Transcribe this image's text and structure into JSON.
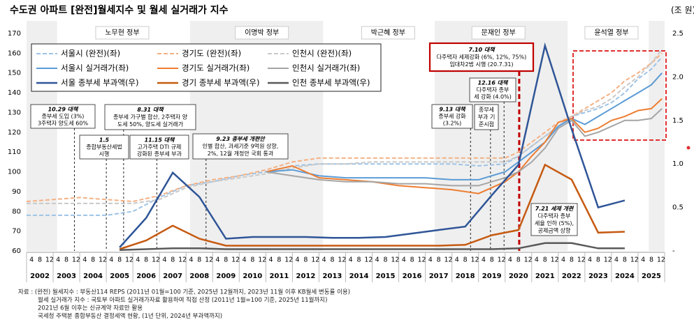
{
  "chart_data": {
    "type": "line",
    "title": "수도권 아파트 [완전]월세지수 및 월세 실거래가 지수",
    "y2_unit": "(조 원)",
    "ylim": [
      60,
      170
    ],
    "yticks": [
      60,
      70,
      80,
      90,
      100,
      110,
      120,
      130,
      140,
      150,
      160,
      170
    ],
    "y2lim": [
      0,
      2.5
    ],
    "y2ticks": [
      {
        "value": 0,
        "label": "-"
      },
      0.5,
      {
        "value": 1,
        "label": "1.0"
      },
      1.5,
      {
        "value": 2,
        "label": "2.0"
      },
      2.5
    ],
    "xlim": [
      2002,
      2026
    ],
    "years": [
      "2002",
      "2003",
      "2004",
      "2005",
      "2006",
      "2007",
      "2008",
      "2009",
      "2010",
      "2011",
      "2012",
      "2013",
      "2014",
      "2015",
      "2016",
      "2017",
      "2018",
      "2019",
      "2020",
      "2021",
      "2022",
      "2023",
      "2024",
      "2025"
    ],
    "month_ticks": [
      "4",
      "8",
      "12"
    ],
    "presidents": [
      "노무현 정부",
      "이명박 정부",
      "박근혜 정부",
      "문재인 정부",
      "윤석열 정부"
    ],
    "x": [
      2002,
      2003,
      2004,
      2005,
      2006,
      2007,
      2008,
      2009,
      2010,
      2011,
      2012,
      2013,
      2014,
      2015,
      2016,
      2017,
      2018,
      2019,
      2020,
      2020.5,
      2021,
      2021.5,
      2022,
      2022.5,
      2023,
      2023.5,
      2024,
      2024.5,
      2025,
      2025.5,
      2025.9
    ],
    "series": [
      {
        "name": "서울시 (완전)(좌)",
        "color": "#9dc3e6",
        "dashed": true,
        "values": [
          78,
          78,
          78,
          78,
          80,
          87,
          93,
          95,
          98,
          100,
          103,
          104,
          104,
          104,
          104,
          104,
          104,
          103,
          104,
          108,
          113,
          118,
          123,
          128,
          130,
          132,
          135,
          140,
          147,
          152,
          158
        ]
      },
      {
        "name": "경기도 (완전)(좌)",
        "color": "#f4b183",
        "dashed": true,
        "values": [
          85,
          86,
          87,
          86,
          85,
          88,
          93,
          96,
          98,
          101,
          105,
          107,
          107,
          107,
          107,
          107,
          107,
          107,
          107,
          110,
          115,
          120,
          125,
          128,
          132,
          136,
          140,
          146,
          150,
          155,
          160
        ]
      },
      {
        "name": "인천시 (완전)(좌)",
        "color": "#c9c9c9",
        "dashed": true,
        "values": [
          84,
          84,
          84,
          84,
          84,
          86,
          92,
          95,
          97,
          99,
          102,
          104,
          104,
          105,
          105,
          105,
          105,
          105,
          105,
          108,
          113,
          118,
          123,
          128,
          131,
          133,
          137,
          143,
          148,
          155,
          162
        ]
      },
      {
        "name": "서울시 실거래가(좌)",
        "color": "#5b9bd5",
        "dashed": false,
        "values": [
          null,
          null,
          null,
          null,
          null,
          null,
          null,
          null,
          null,
          100,
          101,
          98,
          97,
          97,
          97,
          97,
          96,
          96,
          100,
          105,
          110,
          115,
          123,
          127,
          124,
          128,
          132,
          136,
          140,
          144,
          150
        ]
      },
      {
        "name": "경기도 실거래가(좌)",
        "color": "#ed7d31",
        "dashed": false,
        "values": [
          null,
          null,
          null,
          null,
          null,
          null,
          null,
          null,
          null,
          100,
          103,
          97,
          96,
          95,
          93,
          92,
          91,
          89,
          95,
          100,
          108,
          115,
          125,
          127,
          120,
          122,
          126,
          128,
          131,
          132,
          137
        ]
      },
      {
        "name": "인천시 실거래가(좌)",
        "color": "#a5a5a5",
        "dashed": false,
        "values": [
          null,
          null,
          null,
          null,
          null,
          null,
          null,
          null,
          null,
          100,
          98,
          96,
          95,
          95,
          94,
          94,
          93,
          93,
          97,
          100,
          105,
          112,
          122,
          126,
          118,
          120,
          123,
          126,
          126,
          127,
          132
        ]
      },
      {
        "name": "서울 종부세 부과액(우)",
        "color": "#2f5597",
        "dashed": false,
        "axis": "y2",
        "x": [
          2005,
          2006,
          2007,
          2008,
          2009,
          2010,
          2011,
          2012,
          2013,
          2014,
          2015,
          2016,
          2017,
          2018,
          2019,
          2020,
          2021,
          2022,
          2023,
          2024
        ],
        "values": [
          0.04,
          0.38,
          0.9,
          0.62,
          0.14,
          0.16,
          0.16,
          0.16,
          0.15,
          0.15,
          0.16,
          0.2,
          0.24,
          0.28,
          0.64,
          0.99,
          2.36,
          1.4,
          0.5,
          0.58
        ]
      },
      {
        "name": "경기 종부세 부과액(우)",
        "color": "#c55a11",
        "dashed": false,
        "axis": "y2",
        "x": [
          2005,
          2006,
          2007,
          2008,
          2009,
          2010,
          2011,
          2012,
          2013,
          2014,
          2015,
          2016,
          2017,
          2018,
          2019,
          2020,
          2021,
          2022,
          2023,
          2024
        ],
        "values": [
          0.02,
          0.12,
          0.29,
          0.14,
          0.06,
          0.06,
          0.06,
          0.06,
          0.06,
          0.06,
          0.06,
          0.06,
          0.06,
          0.07,
          0.18,
          0.24,
          0.99,
          0.82,
          0.21,
          0.22
        ]
      },
      {
        "name": "인천 종부세 부과액(우)",
        "color": "#595959",
        "dashed": false,
        "axis": "y2",
        "x": [
          2005,
          2006,
          2007,
          2008,
          2009,
          2010,
          2011,
          2012,
          2013,
          2014,
          2015,
          2016,
          2017,
          2018,
          2019,
          2020,
          2021,
          2022,
          2023,
          2024
        ],
        "values": [
          0.01,
          0.02,
          0.03,
          0.03,
          0.02,
          0.02,
          0.02,
          0.02,
          0.02,
          0.02,
          0.02,
          0.02,
          0.02,
          0.02,
          0.02,
          0.03,
          0.09,
          0.09,
          0.03,
          0.03
        ]
      }
    ],
    "annotations": [
      {
        "title": "10.29 대책",
        "lines": [
          "종부세 도입 (3%)",
          "3주택자 양도세 60%"
        ]
      },
      {
        "title": "1.5",
        "lines": [
          "종합부동산세법",
          "시행"
        ]
      },
      {
        "title": "8.31 대책",
        "lines": [
          "종부세 가구별 합산, 2주택자 양",
          "도세 50%, 양도세 실거래가"
        ]
      },
      {
        "title": "11.15 대책",
        "lines": [
          "고가주택 DTI 규제",
          "강화된 종부세 부과"
        ]
      },
      {
        "title": "9.23 종부세 개편안",
        "lines": [
          "인별 합산, 과세기준 9억원 상향,",
          "2%, 12월 개정안 국회 통과"
        ]
      },
      {
        "title": "7.10 대책",
        "lines": [
          "다주택자 세제강화 (6%, 12%, 75%)",
          "임대차2법 시행 (20.7.31)"
        ]
      },
      {
        "title": "12.16 대책",
        "lines": [
          "다주택자 종부",
          "세 강화 (4.0%)"
        ]
      },
      {
        "title": "9.13 대책",
        "lines": [
          "종부세 강화",
          "(3.2%)"
        ]
      },
      {
        "lines": [
          "종부세",
          "부과 기",
          "준시점"
        ]
      },
      {
        "title": "7.21 세제 개편",
        "lines": [
          "다주택자 종부",
          "세율 인하 (5%),",
          "공제금액 상향"
        ]
      }
    ],
    "notes": [
      "자료 : (완전) 월세지수 : 부동산114 REPS (2011년 01월=100 기준, 2025년 12월까지, 2023년 11월 이후 KB월세 변동률 이용)",
      "월세 실거래가 지수 : 국토부 아파트 실거래가자료 활용하여 직접 산정  (2011년 1월=100 기준, 2025년 11월까지)",
      "2021년 6월 이후는 신규계약 자료만 활용",
      "국세청 주택분 종합부동산 결정세액 현황, (1년 단위, 2024년 부과액까지)"
    ]
  }
}
